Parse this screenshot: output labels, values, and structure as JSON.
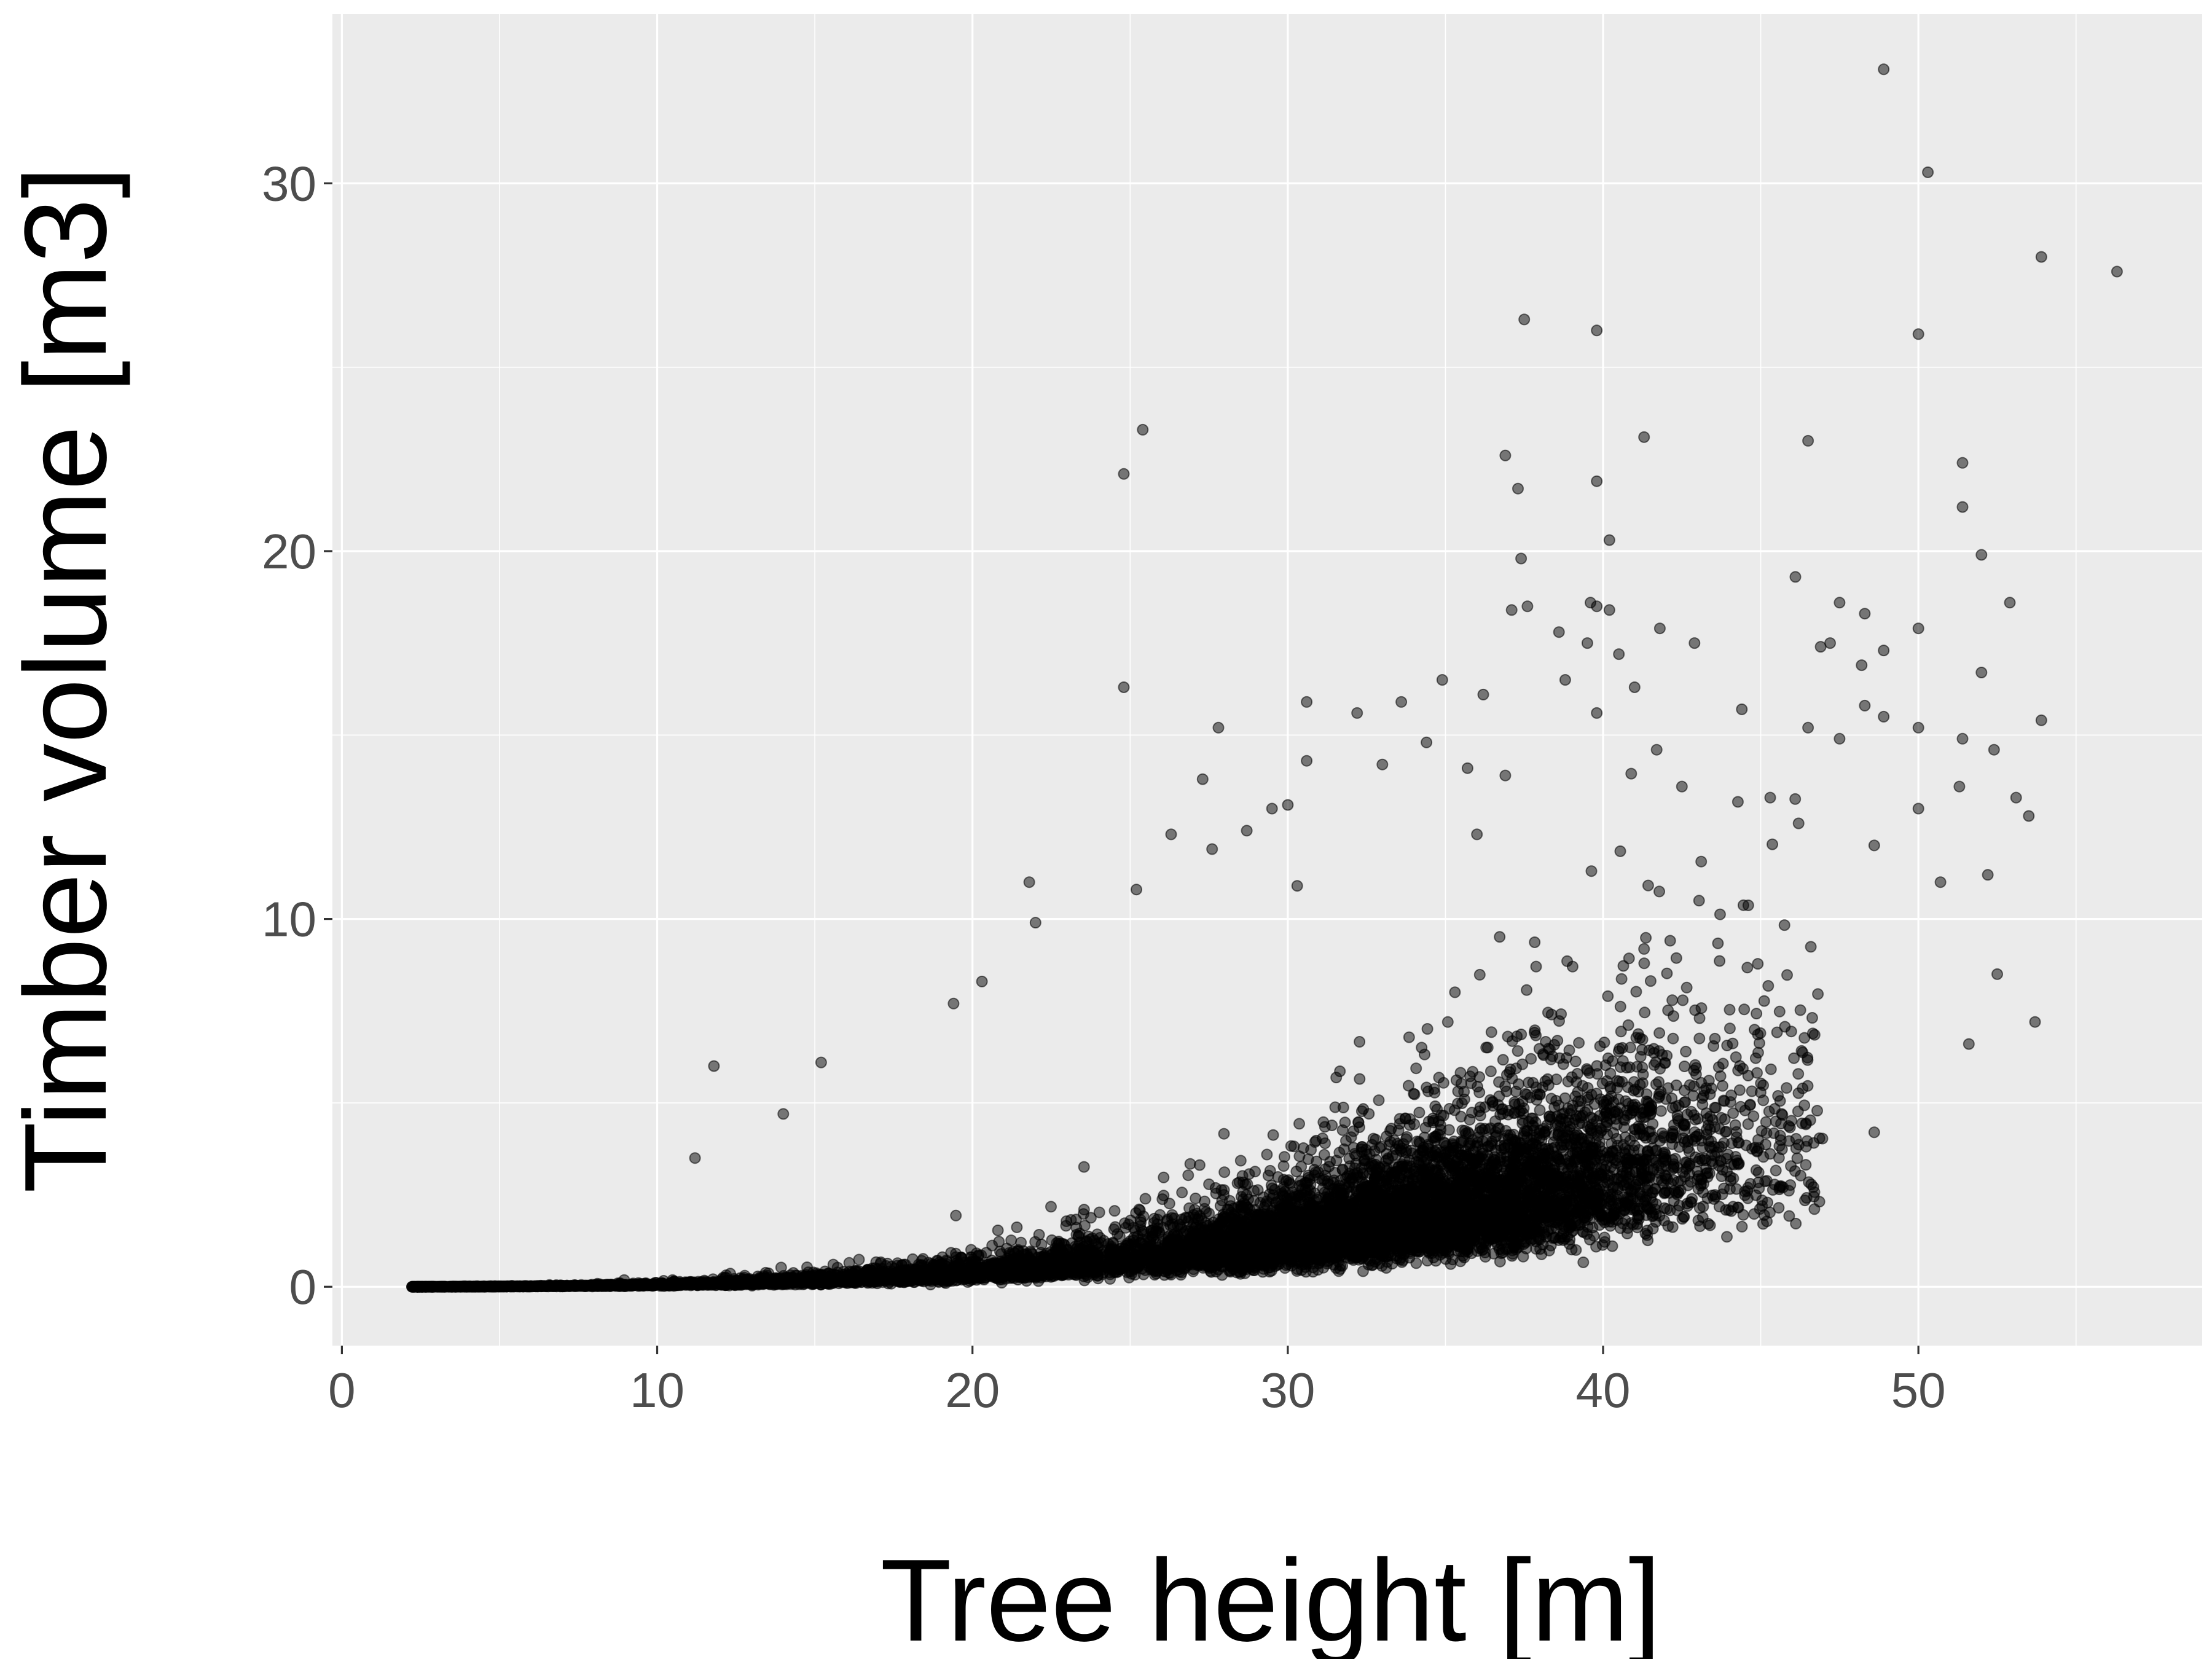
{
  "chart_data": {
    "type": "scatter",
    "title": "",
    "xlabel": "Tree height [m]",
    "ylabel": "Timber volume [m3]",
    "xlim": [
      -0.3,
      59.0
    ],
    "ylim": [
      -1.6,
      34.6
    ],
    "x_ticks": [
      0,
      10,
      20,
      30,
      40,
      50
    ],
    "y_ticks": [
      0,
      10,
      20,
      30
    ],
    "x_tick_labels": [
      "0",
      "10",
      "20",
      "30",
      "40",
      "50"
    ],
    "y_tick_labels": [
      "0",
      "10",
      "20",
      "30"
    ],
    "grid": true,
    "legend": "none",
    "point_color": "#000000",
    "point_alpha": 0.5,
    "background": "#ebebeb",
    "dense_cloud": {
      "n_points": 9000,
      "x_range": [
        2.2,
        47.0
      ],
      "volume_curve_coef": 7e-05,
      "volume_curve_exp": 2.9,
      "noise_lognormal_sigma": 0.42
    },
    "points": [
      [
        48.9,
        33.1
      ],
      [
        50.3,
        30.3
      ],
      [
        53.9,
        28.0
      ],
      [
        56.3,
        27.6
      ],
      [
        37.5,
        26.3
      ],
      [
        39.8,
        26.0
      ],
      [
        50.0,
        25.9
      ],
      [
        25.4,
        23.3
      ],
      [
        41.3,
        23.1
      ],
      [
        46.5,
        23.0
      ],
      [
        36.9,
        22.6
      ],
      [
        51.4,
        22.4
      ],
      [
        24.8,
        22.1
      ],
      [
        39.8,
        21.9
      ],
      [
        37.3,
        21.7
      ],
      [
        51.4,
        21.2
      ],
      [
        40.2,
        20.3
      ],
      [
        52.0,
        19.9
      ],
      [
        37.4,
        19.8
      ],
      [
        46.1,
        19.3
      ],
      [
        52.9,
        18.6
      ],
      [
        39.6,
        18.6
      ],
      [
        47.5,
        18.6
      ],
      [
        37.6,
        18.5
      ],
      [
        39.8,
        18.5
      ],
      [
        37.1,
        18.4
      ],
      [
        40.2,
        18.4
      ],
      [
        48.3,
        18.3
      ],
      [
        50.0,
        17.9
      ],
      [
        41.8,
        17.9
      ],
      [
        38.6,
        17.8
      ],
      [
        42.9,
        17.5
      ],
      [
        39.5,
        17.5
      ],
      [
        47.2,
        17.5
      ],
      [
        46.9,
        17.4
      ],
      [
        48.9,
        17.3
      ],
      [
        40.5,
        17.2
      ],
      [
        48.2,
        16.9
      ],
      [
        52.0,
        16.7
      ],
      [
        24.8,
        16.3
      ],
      [
        34.9,
        16.5
      ],
      [
        38.8,
        16.5
      ],
      [
        41.0,
        16.3
      ],
      [
        36.2,
        16.1
      ],
      [
        30.6,
        15.9
      ],
      [
        33.6,
        15.9
      ],
      [
        44.4,
        15.7
      ],
      [
        32.2,
        15.6
      ],
      [
        39.8,
        15.6
      ],
      [
        48.3,
        15.8
      ],
      [
        48.9,
        15.5
      ],
      [
        53.9,
        15.4
      ],
      [
        27.8,
        15.2
      ],
      [
        46.5,
        15.2
      ],
      [
        50.0,
        15.2
      ],
      [
        51.4,
        14.9
      ],
      [
        47.5,
        14.9
      ],
      [
        34.4,
        14.8
      ],
      [
        41.7,
        14.6
      ],
      [
        52.4,
        14.6
      ],
      [
        30.6,
        14.3
      ],
      [
        33.0,
        14.2
      ],
      [
        35.7,
        14.1
      ],
      [
        36.9,
        13.9
      ],
      [
        27.3,
        13.8
      ],
      [
        42.5,
        13.6
      ],
      [
        45.3,
        13.3
      ],
      [
        53.1,
        13.3
      ],
      [
        29.5,
        13.0
      ],
      [
        30.0,
        13.1
      ],
      [
        50.0,
        13.0
      ],
      [
        51.3,
        13.6
      ],
      [
        26.3,
        12.3
      ],
      [
        28.7,
        12.4
      ],
      [
        36.0,
        12.3
      ],
      [
        46.2,
        12.6
      ],
      [
        21.8,
        11.0
      ],
      [
        22.0,
        9.9
      ],
      [
        48.6,
        12.0
      ],
      [
        52.2,
        11.2
      ],
      [
        50.7,
        11.0
      ],
      [
        53.5,
        12.8
      ],
      [
        52.5,
        8.5
      ],
      [
        53.7,
        7.2
      ],
      [
        51.6,
        6.6
      ],
      [
        48.6,
        4.2
      ],
      [
        11.2,
        3.5
      ],
      [
        11.8,
        6.0
      ],
      [
        15.2,
        6.1
      ],
      [
        14.0,
        4.7
      ],
      [
        19.4,
        7.7
      ],
      [
        20.3,
        8.3
      ],
      [
        25.2,
        10.8
      ],
      [
        27.6,
        11.9
      ],
      [
        30.3,
        10.9
      ]
    ]
  }
}
